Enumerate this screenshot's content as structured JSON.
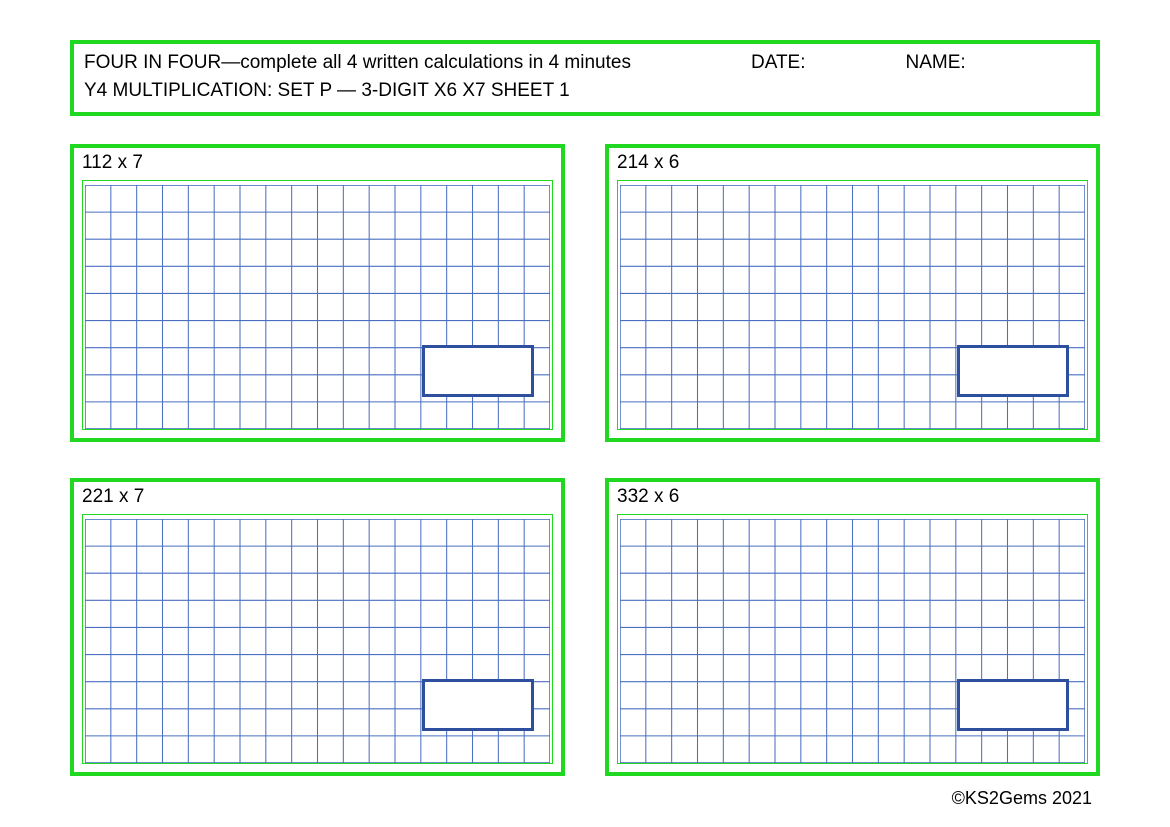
{
  "colors": {
    "border_green": "#1fd81f",
    "grid_blue": "#4a6fc0",
    "answer_blue": "#2e4f9e",
    "workgrid_outer_green": "#1fd81f",
    "text": "#000000",
    "background": "#ffffff"
  },
  "header": {
    "title": "FOUR IN FOUR—complete all 4 written calculations in 4 minutes",
    "date_label": "DATE:",
    "name_label": "NAME:",
    "subtitle": "Y4 MULTIPLICATION: SET P — 3-DIGIT X6 X7 SHEET 1"
  },
  "grid_spec": {
    "cols": 18,
    "rows": 9
  },
  "problems": [
    {
      "label": "112 x 7"
    },
    {
      "label": "214 x 6"
    },
    {
      "label": "221 x 7"
    },
    {
      "label": "332 x 6"
    }
  ],
  "footer": "©KS2Gems 2021"
}
